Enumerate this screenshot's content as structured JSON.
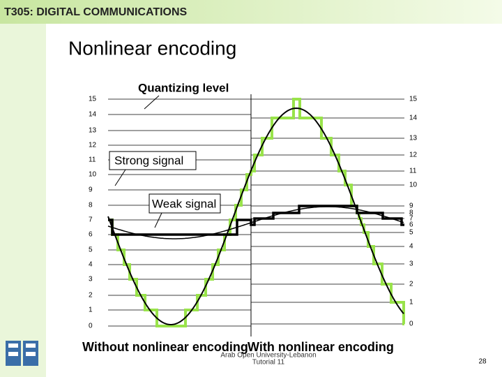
{
  "header": {
    "title": "T305: DIGITAL COMMUNICATIONS"
  },
  "slide": {
    "title": "Nonlinear encoding"
  },
  "callouts": {
    "quantizing": "Quantizing level",
    "strong": "Strong signal",
    "weak": "Weak signal"
  },
  "levels": {
    "left": [
      15,
      14,
      13,
      12,
      11,
      10,
      9,
      8,
      7,
      6,
      5,
      4,
      3,
      2,
      1,
      0
    ],
    "right": [
      15,
      14,
      13,
      12,
      11,
      10,
      9,
      8,
      7,
      6,
      5,
      4,
      3,
      2,
      1,
      0
    ]
  },
  "captions": {
    "left": "Without nonlinear encoding",
    "right": "With nonlinear encoding"
  },
  "footer": {
    "org": "Arab Open University-Lebanon",
    "course": "Tutorial 11",
    "page": "28"
  }
}
